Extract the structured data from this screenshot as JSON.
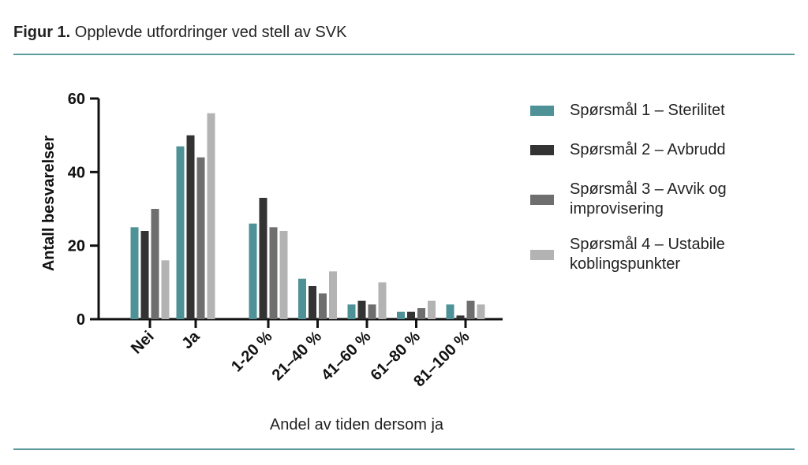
{
  "figure_label": "Figur 1.",
  "chart_data": {
    "type": "bar",
    "title": "Opplevde utfordringer ved stell av SVK",
    "y_label": "Antall besvarelser",
    "x_label": "Andel av tiden dersom ja",
    "categories": [
      "Nei",
      "Ja",
      "1-20 %",
      "21–40 %",
      "41–60 %",
      "61–80 %",
      "81–100 %"
    ],
    "series": [
      {
        "name": "Spørsmål 1 – Sterilitet",
        "color": "#4e9196",
        "values": [
          25,
          47,
          26,
          11,
          4,
          2,
          4
        ]
      },
      {
        "name": "Spørsmål 2 – Avbrudd",
        "color": "#333333",
        "values": [
          24,
          50,
          33,
          9,
          5,
          2,
          1
        ]
      },
      {
        "name": "Spørsmål 3 – Avvik og improvisering",
        "color": "#6e6e6e",
        "values": [
          30,
          44,
          25,
          7,
          4,
          3,
          5
        ]
      },
      {
        "name": "Spørsmål 4 – Ustabile koblingspunkter",
        "color": "#b3b3b3",
        "values": [
          16,
          56,
          24,
          13,
          10,
          5,
          4
        ]
      }
    ],
    "ylim": [
      0,
      60
    ],
    "yticks": [
      0,
      20,
      40,
      60
    ],
    "grid": false,
    "legend": "right"
  }
}
